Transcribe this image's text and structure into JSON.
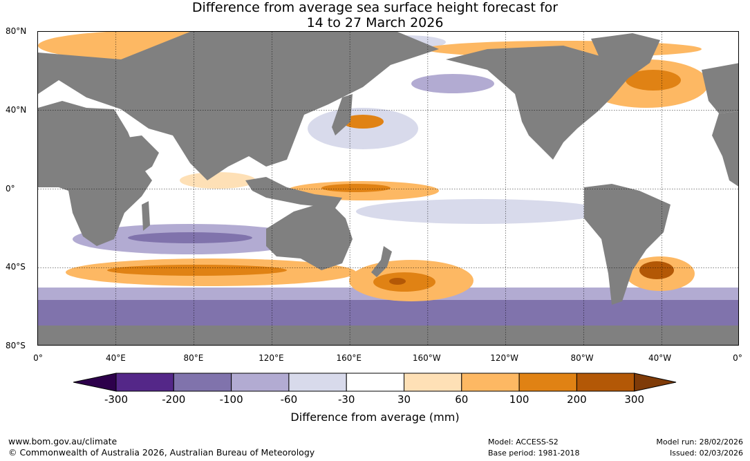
{
  "title_line1": "Difference from average sea surface height forecast for",
  "title_line2": "14 to 27 March 2026",
  "lat_labels": [
    "80°N",
    "40°N",
    "0°",
    "40°S",
    "80°S"
  ],
  "lon_labels": [
    "0°",
    "40°E",
    "80°E",
    "120°E",
    "160°E",
    "160°W",
    "120°W",
    "80°W",
    "40°W",
    "0°"
  ],
  "colorbar": {
    "label": "Difference from average (mm)",
    "ticks": [
      "-300",
      "-200",
      "-100",
      "-60",
      "-30",
      "30",
      "60",
      "100",
      "200",
      "300"
    ],
    "colors": [
      "#2d004b",
      "#542788",
      "#8073ac",
      "#b2abd2",
      "#d8daeb",
      "#ffffff",
      "#fee0b6",
      "#fdb863",
      "#e08214",
      "#b35806",
      "#7f3b08"
    ]
  },
  "land_color": "#808080",
  "footer": {
    "url": "www.bom.gov.au/climate",
    "copyright": "© Commonwealth of Australia 2026, Australian Bureau of Meteorology",
    "model": "Model: ACCESS-S2",
    "base_period": "Base period: 1981-2018",
    "model_run": "Model run: 28/02/2026",
    "issued": "Issued: 02/03/2026"
  }
}
